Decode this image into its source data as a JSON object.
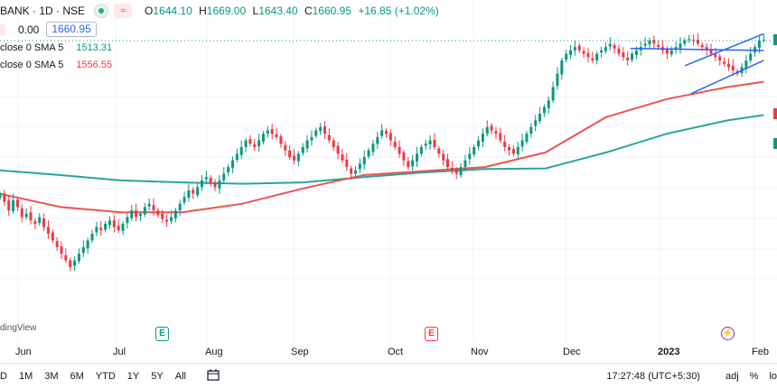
{
  "header": {
    "symbol": "BANK · 1D · NSE",
    "compare_icon_glyph": "≈",
    "ohlc": [
      {
        "key": "O",
        "value": "1644.10"
      },
      {
        "key": "H",
        "value": "1669.00"
      },
      {
        "key": "L",
        "value": "1643.40"
      },
      {
        "key": "C",
        "value": "1660.95"
      },
      {
        "key": "",
        "value": "+16.85 (+1.02%)"
      }
    ],
    "zero": "0.00",
    "price_box": "1660.95"
  },
  "legends": [
    {
      "label": "close 0 SMA 5",
      "value": "1513.31",
      "color": "#089981"
    },
    {
      "label": "close 0 SMA 5",
      "value": "1556.55",
      "color": "#f23645"
    }
  ],
  "watermark": "dingView",
  "x_axis": [
    {
      "label": "Jun",
      "bold": false
    },
    {
      "label": "Jul",
      "bold": false
    },
    {
      "label": "Aug",
      "bold": false
    },
    {
      "label": "Sep",
      "bold": false
    },
    {
      "label": "Oct",
      "bold": false
    },
    {
      "label": "Nov",
      "bold": false
    },
    {
      "label": "Dec",
      "bold": false
    },
    {
      "label": "2023",
      "bold": true
    },
    {
      "label": "Feb",
      "bold": false
    }
  ],
  "events": {
    "earnings_glyph": "E",
    "bolt_glyph": "⚡"
  },
  "bottom_bar": {
    "ranges": [
      "D",
      "1M",
      "3M",
      "6M",
      "YTD",
      "1Y",
      "5Y",
      "All"
    ],
    "calendar_icon": "calendar-range-icon",
    "time": "17:27:48 (UTC+5:30)",
    "adj": "adj",
    "percent": "%",
    "log": "lo"
  },
  "colors": {
    "up": "#089981",
    "down": "#f23645",
    "sma_slow": "#26a69a",
    "sma_fast": "#ef5350",
    "trend": "#2962ff"
  },
  "chart_data": {
    "type": "candlestick",
    "title": "",
    "y_range": [
      1240,
      1680
    ],
    "x_range_days": [
      0,
      254
    ],
    "month_ticks": [
      "Jun",
      "Jul",
      "Aug",
      "Sep",
      "Oct",
      "Nov",
      "Dec",
      "2023",
      "Feb"
    ],
    "last_close": 1660.95,
    "sma_green": [
      [
        0,
        1465
      ],
      [
        20,
        1458
      ],
      [
        40,
        1450
      ],
      [
        60,
        1447
      ],
      [
        80,
        1445
      ],
      [
        100,
        1447
      ],
      [
        120,
        1455
      ],
      [
        140,
        1462
      ],
      [
        160,
        1467
      ],
      [
        180,
        1468
      ],
      [
        200,
        1492
      ],
      [
        220,
        1520
      ],
      [
        240,
        1540
      ],
      [
        252,
        1548
      ]
    ],
    "sma_red": [
      [
        0,
        1430
      ],
      [
        20,
        1410
      ],
      [
        40,
        1402
      ],
      [
        60,
        1402
      ],
      [
        80,
        1415
      ],
      [
        100,
        1438
      ],
      [
        120,
        1458
      ],
      [
        140,
        1464
      ],
      [
        160,
        1470
      ],
      [
        180,
        1492
      ],
      [
        200,
        1545
      ],
      [
        220,
        1572
      ],
      [
        240,
        1590
      ],
      [
        252,
        1598
      ]
    ],
    "trendlines": [
      {
        "from": [
          208,
          1648
        ],
        "to": [
          252,
          1645
        ]
      },
      {
        "from": [
          226,
          1622
        ],
        "to": [
          252,
          1670
        ]
      },
      {
        "from": [
          228,
          1580
        ],
        "to": [
          252,
          1630
        ]
      }
    ],
    "candles_close": [
      1430,
      1418,
      1405,
      1420,
      1410,
      1395,
      1400,
      1390,
      1385,
      1395,
      1380,
      1370,
      1360,
      1350,
      1340,
      1330,
      1320,
      1330,
      1340,
      1350,
      1360,
      1370,
      1380,
      1375,
      1385,
      1390,
      1380,
      1375,
      1385,
      1395,
      1405,
      1395,
      1400,
      1410,
      1415,
      1405,
      1398,
      1392,
      1388,
      1395,
      1405,
      1415,
      1425,
      1435,
      1430,
      1440,
      1450,
      1455,
      1445,
      1440,
      1450,
      1460,
      1470,
      1480,
      1490,
      1500,
      1510,
      1505,
      1500,
      1510,
      1520,
      1525,
      1520,
      1515,
      1505,
      1495,
      1485,
      1480,
      1490,
      1500,
      1510,
      1515,
      1525,
      1530,
      1520,
      1510,
      1500,
      1490,
      1480,
      1470,
      1460,
      1465,
      1475,
      1485,
      1495,
      1505,
      1515,
      1525,
      1520,
      1510,
      1500,
      1490,
      1480,
      1470,
      1480,
      1490,
      1500,
      1505,
      1510,
      1500,
      1490,
      1480,
      1470,
      1465,
      1460,
      1470,
      1480,
      1490,
      1500,
      1510,
      1520,
      1530,
      1525,
      1520,
      1510,
      1500,
      1495,
      1490,
      1500,
      1510,
      1520,
      1530,
      1540,
      1550,
      1560,
      1570,
      1590,
      1610,
      1630,
      1640,
      1645,
      1650,
      1645,
      1640,
      1635,
      1630,
      1640,
      1645,
      1650,
      1655,
      1648,
      1640,
      1635,
      1630,
      1640,
      1645,
      1650,
      1655,
      1660,
      1655,
      1650,
      1645,
      1640,
      1645,
      1650,
      1655,
      1660,
      1662,
      1660,
      1655,
      1650,
      1645,
      1640,
      1635,
      1630,
      1625,
      1620,
      1615,
      1610,
      1620,
      1630,
      1640,
      1650,
      1660,
      1661
    ]
  }
}
